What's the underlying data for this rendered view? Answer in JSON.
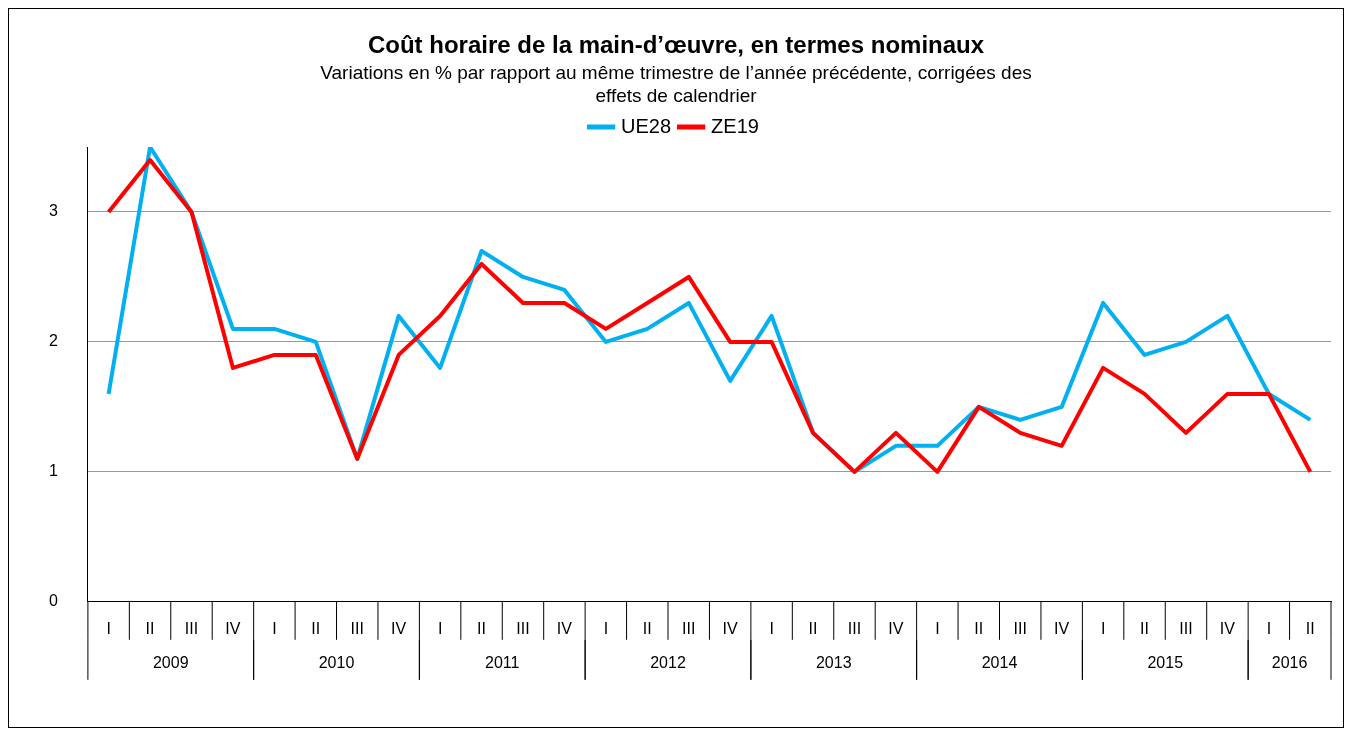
{
  "chart_data": {
    "type": "line",
    "title": "Coût horaire de la main-d’œuvre, en termes nominaux",
    "subtitle": "Variations en % par rapport au même trimestre de l’année précédente, corrigées des effets de calendrier",
    "categories": [
      "I",
      "II",
      "III",
      "IV",
      "I",
      "II",
      "III",
      "IV",
      "I",
      "II",
      "III",
      "IV",
      "I",
      "II",
      "III",
      "IV",
      "I",
      "II",
      "III",
      "IV",
      "I",
      "II",
      "III",
      "IV",
      "I",
      "II",
      "III",
      "IV",
      "I",
      "II"
    ],
    "series": [
      {
        "name": "UE28",
        "color": "#00b0f0",
        "values": [
          1.6,
          3.5,
          3.0,
          2.1,
          2.1,
          2.0,
          1.1,
          2.2,
          1.8,
          2.7,
          2.5,
          2.4,
          2.0,
          2.1,
          2.3,
          1.7,
          2.2,
          1.3,
          1.0,
          1.2,
          1.2,
          1.5,
          1.4,
          1.5,
          2.3,
          1.9,
          2.0,
          2.2,
          1.6,
          1.4
        ]
      },
      {
        "name": "ZE19",
        "color": "#ff0000",
        "values": [
          3.0,
          3.4,
          3.0,
          1.8,
          1.9,
          1.9,
          1.1,
          1.9,
          2.2,
          2.6,
          2.3,
          2.3,
          2.1,
          2.3,
          2.5,
          2.0,
          2.0,
          1.3,
          1.0,
          1.3,
          1.0,
          1.5,
          1.3,
          1.2,
          1.8,
          1.6,
          1.3,
          1.6,
          1.6,
          1.0
        ]
      }
    ],
    "annotations": [
      "2009",
      "2010",
      "2011",
      "2012",
      "2013",
      "2014",
      "2015",
      "2016"
    ],
    "ylim": [
      0,
      3.5
    ],
    "yticks": [
      0,
      1,
      2,
      3
    ],
    "grid": "y",
    "legend": "top",
    "marker": "none",
    "line_style": "solid"
  }
}
